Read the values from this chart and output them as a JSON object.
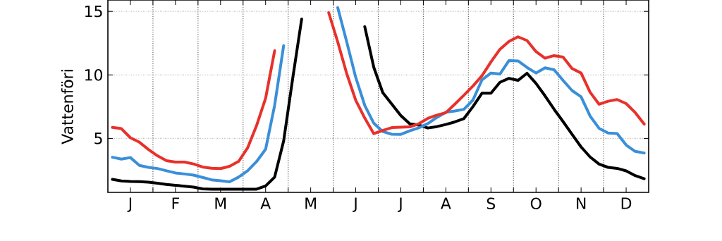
{
  "chart_data": {
    "type": "line",
    "ylabel": "Vattenföri",
    "categories": [
      null,
      null,
      "J",
      null,
      null,
      null,
      null,
      "F",
      null,
      null,
      null,
      null,
      "M",
      null,
      null,
      null,
      null,
      "A",
      null,
      null,
      null,
      null,
      "M",
      null,
      null,
      null,
      null,
      "J",
      null,
      null,
      null,
      null,
      "J",
      null,
      null,
      null,
      null,
      "A",
      null,
      null,
      null,
      null,
      "S",
      null,
      null,
      null,
      null,
      "O",
      null,
      null,
      null,
      null,
      "N",
      null,
      null,
      null,
      null,
      "D",
      null,
      null
    ],
    "ylim": [
      0.75,
      15.9
    ],
    "yticks": [
      5,
      10,
      15
    ],
    "grid": true,
    "line_style": "solid",
    "marker": "none",
    "series": [
      {
        "color": "#000000",
        "values": [
          1.78,
          1.65,
          1.61,
          1.59,
          1.55,
          1.47,
          1.38,
          1.31,
          1.24,
          1.17,
          1.03,
          1.0,
          1.0,
          1.0,
          1.0,
          1.0,
          1.0,
          1.26,
          1.95,
          4.8,
          9.7,
          14.4,
          null,
          null,
          null,
          null,
          null,
          null,
          13.8,
          10.6,
          8.6,
          7.7,
          6.8,
          6.15,
          6.05,
          5.82,
          5.93,
          6.1,
          6.3,
          6.56,
          7.5,
          8.56,
          8.56,
          9.42,
          9.73,
          9.57,
          10.13,
          9.33,
          8.35,
          7.3,
          6.33,
          5.32,
          4.33,
          3.54,
          2.98,
          2.72,
          2.64,
          2.44,
          2.07,
          1.83
        ]
      },
      {
        "color": "#3a8fd8",
        "values": [
          3.52,
          3.37,
          3.49,
          2.87,
          2.72,
          2.63,
          2.45,
          2.28,
          2.2,
          2.11,
          1.93,
          1.74,
          1.66,
          1.58,
          1.95,
          2.45,
          3.18,
          4.15,
          7.6,
          12.3,
          null,
          null,
          null,
          null,
          null,
          15.3,
          12.6,
          9.8,
          7.6,
          6.2,
          5.54,
          5.33,
          5.32,
          5.6,
          5.83,
          6.17,
          6.65,
          7.06,
          7.16,
          7.29,
          8.02,
          9.6,
          10.15,
          10.07,
          11.13,
          11.1,
          10.59,
          10.15,
          10.56,
          10.41,
          9.57,
          8.77,
          8.28,
          6.76,
          5.79,
          5.43,
          5.38,
          4.48,
          3.98,
          3.85
        ]
      },
      {
        "color": "#e8312b",
        "values": [
          5.87,
          5.77,
          5.05,
          4.7,
          4.13,
          3.63,
          3.25,
          3.14,
          3.14,
          2.99,
          2.75,
          2.65,
          2.62,
          2.8,
          3.19,
          4.25,
          6.02,
          8.17,
          11.9,
          null,
          null,
          null,
          null,
          null,
          14.9,
          12.6,
          10.1,
          8.0,
          6.6,
          5.37,
          5.63,
          5.85,
          5.88,
          5.91,
          6.16,
          6.58,
          6.83,
          7.03,
          7.7,
          8.4,
          9.12,
          9.93,
          11.02,
          12.02,
          12.64,
          13.0,
          12.71,
          11.84,
          11.32,
          11.52,
          11.4,
          10.5,
          10.15,
          8.64,
          7.69,
          7.93,
          8.06,
          7.74,
          7.04,
          6.13
        ]
      }
    ]
  }
}
